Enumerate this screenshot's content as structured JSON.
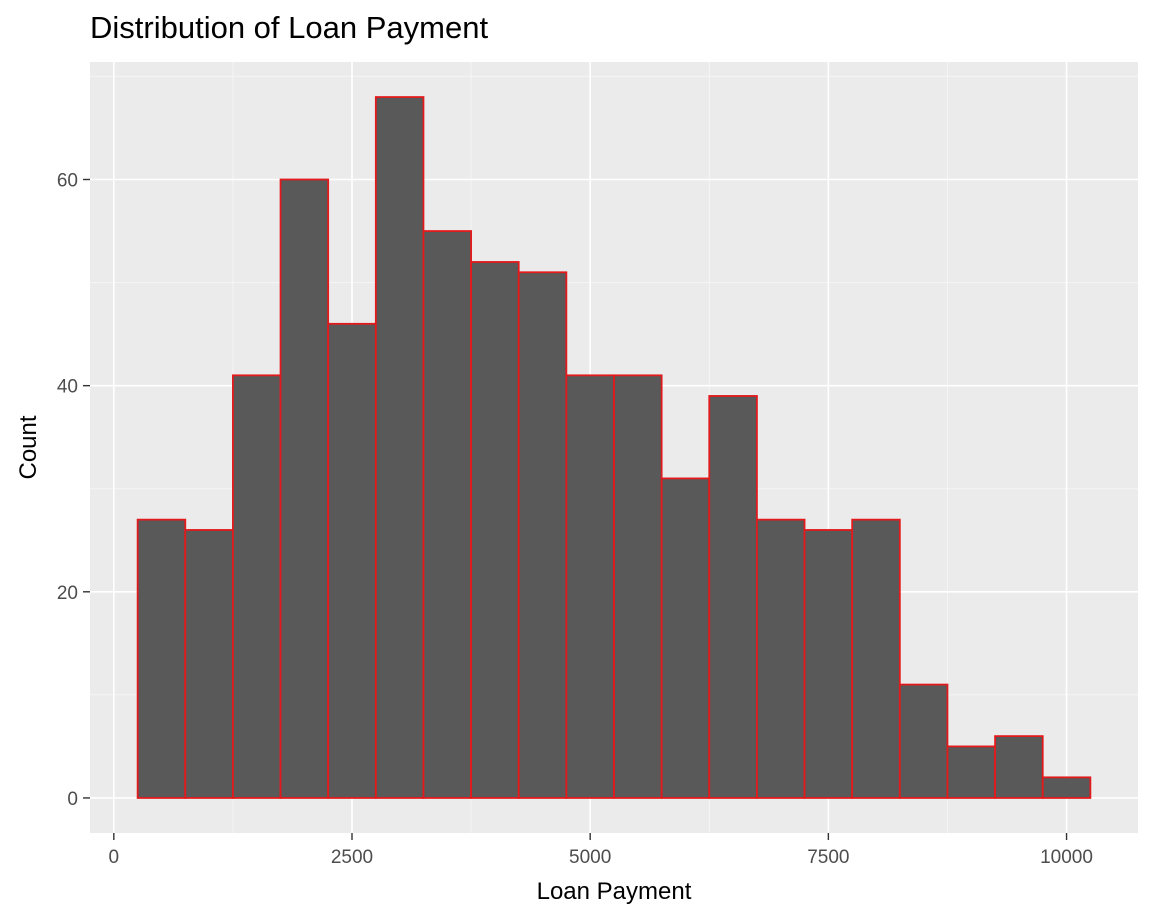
{
  "chart_data": {
    "type": "bar",
    "title": "Distribution of Loan Payment",
    "xlabel": "Loan Payment",
    "ylabel": "Count",
    "bin_width": 500,
    "bins": [
      {
        "x0": 250,
        "x1": 750,
        "count": 27
      },
      {
        "x0": 750,
        "x1": 1250,
        "count": 26
      },
      {
        "x0": 1250,
        "x1": 1750,
        "count": 41
      },
      {
        "x0": 1750,
        "x1": 2250,
        "count": 60
      },
      {
        "x0": 2250,
        "x1": 2750,
        "count": 46
      },
      {
        "x0": 2750,
        "x1": 3250,
        "count": 68
      },
      {
        "x0": 3250,
        "x1": 3750,
        "count": 55
      },
      {
        "x0": 3750,
        "x1": 4250,
        "count": 52
      },
      {
        "x0": 4250,
        "x1": 4750,
        "count": 51
      },
      {
        "x0": 4750,
        "x1": 5250,
        "count": 41
      },
      {
        "x0": 5250,
        "x1": 5750,
        "count": 41
      },
      {
        "x0": 5750,
        "x1": 6250,
        "count": 31
      },
      {
        "x0": 6250,
        "x1": 6750,
        "count": 39
      },
      {
        "x0": 6750,
        "x1": 7250,
        "count": 27
      },
      {
        "x0": 7250,
        "x1": 7750,
        "count": 26
      },
      {
        "x0": 7750,
        "x1": 8250,
        "count": 27
      },
      {
        "x0": 8250,
        "x1": 8750,
        "count": 11
      },
      {
        "x0": 8750,
        "x1": 9250,
        "count": 5
      },
      {
        "x0": 9250,
        "x1": 9750,
        "count": 6
      },
      {
        "x0": 9750,
        "x1": 10250,
        "count": 2
      }
    ],
    "xlim": [
      -250,
      10750
    ],
    "ylim": [
      -3.4,
      71.4
    ],
    "xticks": [
      0,
      2500,
      5000,
      7500,
      10000
    ],
    "xtick_labels": [
      "0",
      "2500",
      "5000",
      "7500",
      "10000"
    ],
    "yticks": [
      0,
      20,
      40,
      60
    ],
    "ytick_labels": [
      "0",
      "20",
      "40",
      "60"
    ],
    "x_minor_ticks": [
      1250,
      3750,
      6250,
      8750
    ],
    "y_minor_ticks": [
      10,
      30,
      50,
      70
    ],
    "grid": true,
    "colors": {
      "bar_fill": "#595959",
      "bar_outline": "#e31a1c",
      "panel_background": "#ebebeb",
      "grid_major": "#ffffff",
      "grid_minor": "#f5f5f5",
      "tick_text": "#4d4d4d",
      "tick_mark": "#333333"
    }
  }
}
